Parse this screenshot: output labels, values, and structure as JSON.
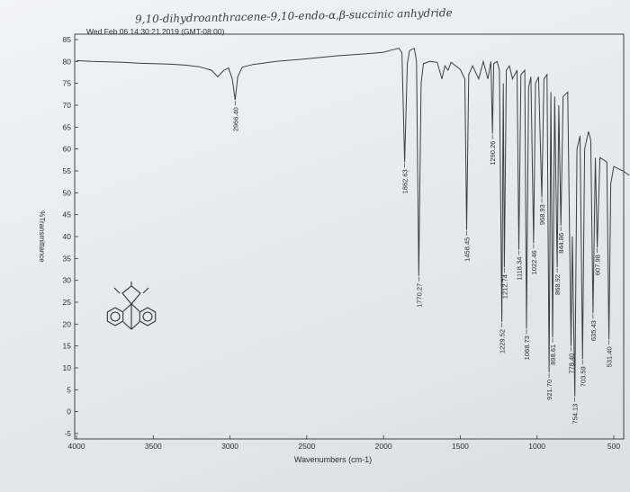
{
  "chart_data": {
    "type": "line",
    "title": "9,10-dihydroanthracene-9,10-endo-α,β-succinic anhydride",
    "subtitle": "Wed Feb 06 14:30:21 2019 (GMT-08:00)",
    "xlabel": "Wavenumbers (cm-1)",
    "ylabel": "%Transmittance",
    "xlim": [
      4000,
      400
    ],
    "ylim": [
      -5,
      85
    ],
    "x_ticks": [
      4000,
      3500,
      3000,
      2500,
      2000,
      1500,
      1000,
      500
    ],
    "y_ticks": [
      -5,
      0,
      5,
      10,
      15,
      20,
      25,
      30,
      35,
      40,
      45,
      50,
      55,
      60,
      65,
      70,
      75,
      80,
      85
    ],
    "grid": false,
    "series": [
      {
        "points": [
          [
            4000,
            80.2
          ],
          [
            3900,
            80.0
          ],
          [
            3800,
            79.9
          ],
          [
            3700,
            79.8
          ],
          [
            3600,
            79.6
          ],
          [
            3500,
            79.5
          ],
          [
            3400,
            79.4
          ],
          [
            3300,
            79.2
          ],
          [
            3200,
            78.8
          ],
          [
            3120,
            78.0
          ],
          [
            3080,
            76.5
          ],
          [
            3040,
            78.0
          ],
          [
            3010,
            78.5
          ],
          [
            2985,
            76.0
          ],
          [
            2966.4,
            71.2
          ],
          [
            2950,
            76.5
          ],
          [
            2920,
            78.7
          ],
          [
            2850,
            79.3
          ],
          [
            2700,
            80.0
          ],
          [
            2500,
            80.6
          ],
          [
            2300,
            81.3
          ],
          [
            2100,
            81.8
          ],
          [
            2000,
            82.1
          ],
          [
            1950,
            82.6
          ],
          [
            1900,
            83.0
          ],
          [
            1880,
            82.0
          ],
          [
            1862.63,
            57.0
          ],
          [
            1845,
            79.5
          ],
          [
            1830,
            82.5
          ],
          [
            1800,
            83.0
          ],
          [
            1785,
            80.0
          ],
          [
            1770.27,
            31.0
          ],
          [
            1755,
            75.0
          ],
          [
            1740,
            79.5
          ],
          [
            1700,
            80.0
          ],
          [
            1650,
            79.8
          ],
          [
            1620,
            76.0
          ],
          [
            1600,
            79.0
          ],
          [
            1580,
            78.0
          ],
          [
            1560,
            79.8
          ],
          [
            1500,
            78.2
          ],
          [
            1470,
            76.0
          ],
          [
            1458.45,
            41.5
          ],
          [
            1445,
            77.0
          ],
          [
            1420,
            79.0
          ],
          [
            1380,
            76.0
          ],
          [
            1350,
            80.0
          ],
          [
            1320,
            76.0
          ],
          [
            1300,
            80.0
          ],
          [
            1290.26,
            63.5
          ],
          [
            1282,
            79.5
          ],
          [
            1260,
            80.0
          ],
          [
            1245,
            78.0
          ],
          [
            1229.52,
            20.5
          ],
          [
            1220,
            75.0
          ],
          [
            1212.74,
            33.0
          ],
          [
            1200,
            78.0
          ],
          [
            1180,
            79.0
          ],
          [
            1160,
            76.0
          ],
          [
            1130,
            78.0
          ],
          [
            1118.34,
            37.0
          ],
          [
            1105,
            77.0
          ],
          [
            1080,
            78.0
          ],
          [
            1068.73,
            19.0
          ],
          [
            1055,
            74.0
          ],
          [
            1040,
            76.5
          ],
          [
            1022.46,
            38.5
          ],
          [
            1010,
            75.0
          ],
          [
            990,
            76.5
          ],
          [
            968.93,
            49.0
          ],
          [
            955,
            76.0
          ],
          [
            935,
            77.0
          ],
          [
            921.7,
            9.0
          ],
          [
            910,
            73.0
          ],
          [
            898.61,
            17.0
          ],
          [
            885,
            72.0
          ],
          [
            868.92,
            33.0
          ],
          [
            858,
            70.0
          ],
          [
            844.86,
            42.5
          ],
          [
            830,
            72.0
          ],
          [
            800,
            73.0
          ],
          [
            778.4,
            15.0
          ],
          [
            770,
            40.0
          ],
          [
            754.13,
            3.5
          ],
          [
            740,
            60.0
          ],
          [
            720,
            63.0
          ],
          [
            703.59,
            12.0
          ],
          [
            690,
            60.0
          ],
          [
            665,
            64.0
          ],
          [
            650,
            62.0
          ],
          [
            635.43,
            22.5
          ],
          [
            620,
            58.0
          ],
          [
            607.98,
            37.5
          ],
          [
            590,
            58.0
          ],
          [
            565,
            57.5
          ],
          [
            545,
            57.0
          ],
          [
            531.4,
            16.5
          ],
          [
            520,
            52.0
          ],
          [
            500,
            56.0
          ],
          [
            470,
            55.5
          ],
          [
            440,
            55.0
          ],
          [
            420,
            54.5
          ],
          [
            400,
            54.0
          ]
        ]
      }
    ],
    "peak_labels": [
      {
        "x": 2966.4,
        "y": 71.2,
        "label": "2966.40"
      },
      {
        "x": 1862.63,
        "y": 57.0,
        "label": "1862.63"
      },
      {
        "x": 1770.27,
        "y": 31.0,
        "label": "1770.27"
      },
      {
        "x": 1458.45,
        "y": 41.5,
        "label": "1458.45"
      },
      {
        "x": 1290.26,
        "y": 63.5,
        "label": "1290.26"
      },
      {
        "x": 1229.52,
        "y": 20.5,
        "label": "1229.52"
      },
      {
        "x": 1212.74,
        "y": 33.0,
        "label": "1212.74"
      },
      {
        "x": 1118.34,
        "y": 37.0,
        "label": "1118.34"
      },
      {
        "x": 1068.73,
        "y": 19.0,
        "label": "1068.73"
      },
      {
        "x": 1022.46,
        "y": 38.5,
        "label": "1022.46"
      },
      {
        "x": 968.93,
        "y": 49.0,
        "label": "968.93"
      },
      {
        "x": 921.7,
        "y": 9.0,
        "label": "921.70"
      },
      {
        "x": 898.61,
        "y": 17.0,
        "label": "898.61"
      },
      {
        "x": 868.92,
        "y": 33.0,
        "label": "868.92"
      },
      {
        "x": 844.86,
        "y": 42.5,
        "label": "844.86"
      },
      {
        "x": 778.4,
        "y": 15.0,
        "label": "778.40"
      },
      {
        "x": 754.13,
        "y": 3.5,
        "label": "754.13"
      },
      {
        "x": 703.59,
        "y": 12.0,
        "label": "703.59"
      },
      {
        "x": 635.43,
        "y": 22.5,
        "label": "635.43"
      },
      {
        "x": 607.98,
        "y": 37.5,
        "label": "607.98"
      },
      {
        "x": 531.4,
        "y": 16.5,
        "label": "531.40"
      }
    ],
    "structure_sketch": "molecule-structure-icon"
  }
}
